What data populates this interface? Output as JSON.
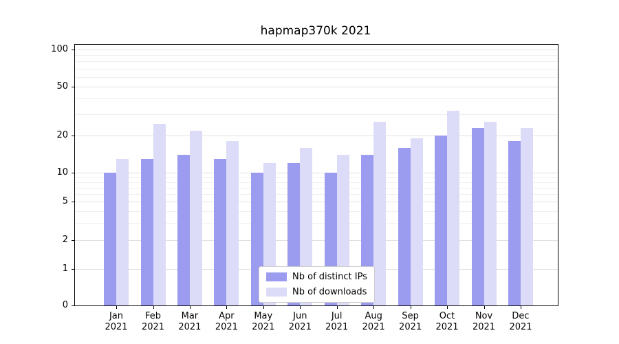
{
  "chart_data": {
    "type": "bar",
    "title": "hapmap370k 2021",
    "xlabel": "",
    "ylabel": "",
    "yscale": "symlog",
    "ylim": [
      0,
      110
    ],
    "grid": true,
    "legend_position": "lower center",
    "categories": [
      "Jan 2021",
      "Feb 2021",
      "Mar 2021",
      "Apr 2021",
      "May 2021",
      "Jun 2021",
      "Jul 2021",
      "Aug 2021",
      "Sep 2021",
      "Oct 2021",
      "Nov 2021",
      "Dec 2021"
    ],
    "y_major_ticks": [
      100,
      50,
      20,
      10,
      5,
      2,
      1,
      0
    ],
    "y_minor_ticks": [
      3,
      4,
      6,
      7,
      8,
      9,
      30,
      40,
      60,
      70,
      80,
      90
    ],
    "series": [
      {
        "name": "Nb of distinct IPs",
        "color": "#9b9bf0",
        "values": [
          10,
          13,
          14,
          13,
          10,
          12,
          10,
          14,
          16,
          20,
          23,
          18
        ]
      },
      {
        "name": "Nb of downloads",
        "color": "#dcdcf9",
        "values": [
          13,
          25,
          22,
          18,
          12,
          16,
          14,
          26,
          19,
          32,
          26,
          23
        ]
      }
    ]
  }
}
